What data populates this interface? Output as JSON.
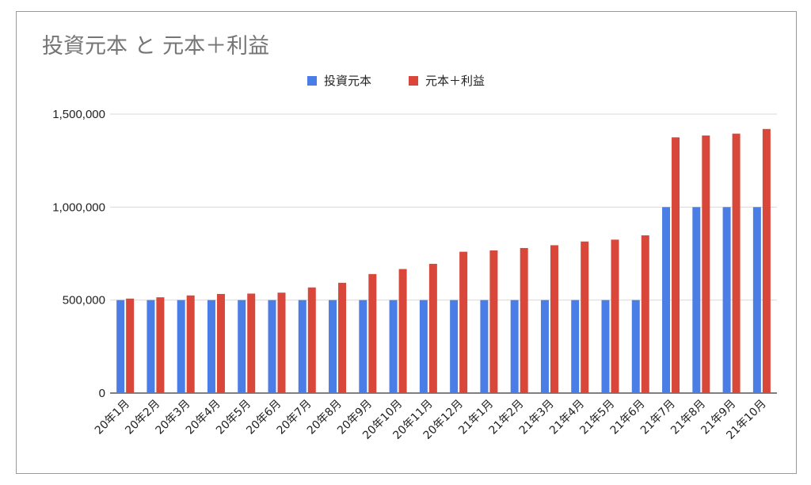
{
  "chart_data": {
    "type": "bar",
    "title": "投資元本 と 元本＋利益",
    "xlabel": "",
    "ylabel": "",
    "categories": [
      "20年1月",
      "20年2月",
      "20年3月",
      "20年4月",
      "20年5月",
      "20年6月",
      "20年7月",
      "20年8月",
      "20年9月",
      "20年10月",
      "20年11月",
      "20年12月",
      "21年1月",
      "21年2月",
      "21年3月",
      "21年4月",
      "21年5月",
      "21年6月",
      "21年7月",
      "21年8月",
      "21年9月",
      "21年10月"
    ],
    "series": [
      {
        "name": "投資元本",
        "color": "#4a7ee6",
        "values": [
          500000,
          500000,
          500000,
          500000,
          500000,
          500000,
          500000,
          500000,
          500000,
          500000,
          500000,
          500000,
          500000,
          500000,
          500000,
          500000,
          500000,
          500000,
          1000000,
          1000000,
          1000000,
          1000000
        ]
      },
      {
        "name": "元本＋利益",
        "color": "#d9473a",
        "values": [
          508000,
          515000,
          525000,
          533000,
          535000,
          540000,
          568000,
          593000,
          640000,
          667000,
          695000,
          760000,
          767000,
          780000,
          795000,
          815000,
          825000,
          848000,
          1375000,
          1385000,
          1395000,
          1420000
        ]
      }
    ],
    "ylim": [
      0,
      1500000
    ],
    "yticks": [
      {
        "value": 0,
        "label": "0"
      },
      {
        "value": 500000,
        "label": "500,000"
      },
      {
        "value": 1000000,
        "label": "1,000,000"
      },
      {
        "value": 1500000,
        "label": "1,500,000"
      }
    ],
    "grid": true,
    "legend_position": "top-center"
  }
}
